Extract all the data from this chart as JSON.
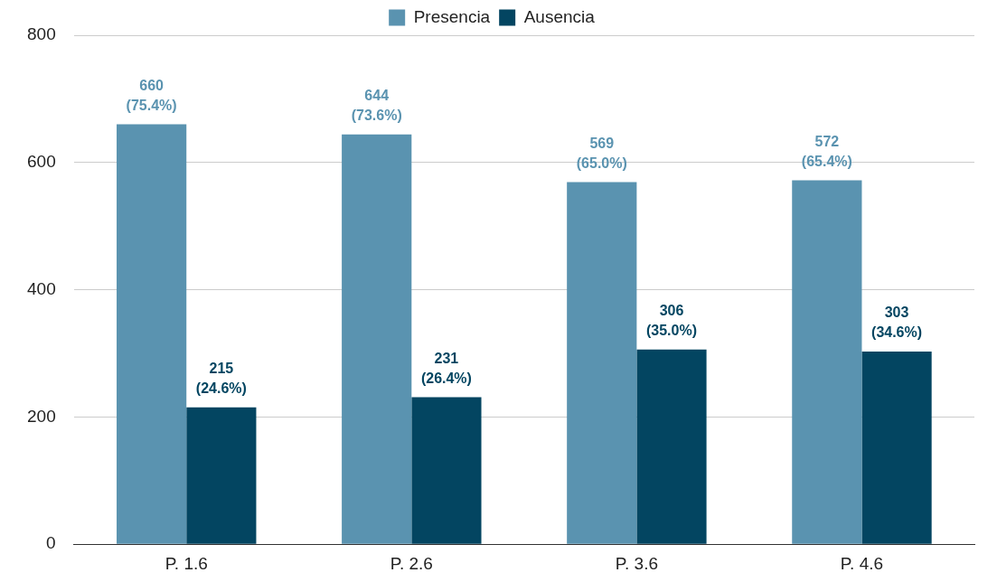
{
  "chart_data": {
    "type": "bar",
    "categories": [
      "P. 1.6",
      "P. 2.6",
      "P. 3.6",
      "P. 4.6"
    ],
    "series": [
      {
        "name": "Presencia",
        "color": "#5a93b0",
        "values": [
          660,
          644,
          569,
          572
        ],
        "value_labels": [
          "660\n(75.4%)",
          "644\n(73.6%)",
          "569\n(65.0%)",
          "572\n(65.4%)"
        ]
      },
      {
        "name": "Ausencia",
        "color": "#034561",
        "values": [
          215,
          231,
          306,
          303
        ],
        "value_labels": [
          "215\n(24.6%)",
          "231\n(26.4%)",
          "306\n(35.0%)",
          "303\n(34.6%)"
        ]
      }
    ],
    "ylim": [
      0,
      800
    ],
    "yticks": [
      0,
      200,
      400,
      600,
      800
    ],
    "grid": "y",
    "legend": "top"
  }
}
